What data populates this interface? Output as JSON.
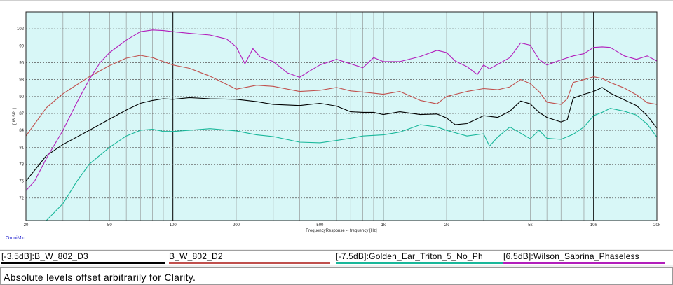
{
  "chart_data": {
    "type": "line",
    "title": "",
    "xlabel": "FrequencyResponse -- frequency [Hz]",
    "ylabel": "[dB SPL]",
    "x_scale": "log",
    "xlim": [
      20,
      20000
    ],
    "ylim": [
      68,
      105
    ],
    "grid": true,
    "background": "#d8f7f7",
    "x_ticks": [
      {
        "value": 20,
        "label": "20"
      },
      {
        "value": 50,
        "label": "50"
      },
      {
        "value": 100,
        "label": "100"
      },
      {
        "value": 200,
        "label": "200"
      },
      {
        "value": 500,
        "label": "500"
      },
      {
        "value": 1000,
        "label": "1k"
      },
      {
        "value": 2000,
        "label": "2k"
      },
      {
        "value": 5000,
        "label": "5k"
      },
      {
        "value": 10000,
        "label": "10k"
      },
      {
        "value": 20000,
        "label": "20k"
      }
    ],
    "y_ticks": [
      72,
      75,
      78,
      81,
      84,
      87,
      90,
      93,
      96,
      99,
      102
    ],
    "series": [
      {
        "name": "[-3.5dB]:B_W_802_D3",
        "color": "#000000",
        "points": [
          [
            20,
            75
          ],
          [
            25,
            79.5
          ],
          [
            30,
            81.5
          ],
          [
            40,
            84
          ],
          [
            50,
            86
          ],
          [
            60,
            87.6
          ],
          [
            70,
            88.8
          ],
          [
            80,
            89.3
          ],
          [
            90,
            89.6
          ],
          [
            100,
            89.5
          ],
          [
            120,
            89.8
          ],
          [
            150,
            89.6
          ],
          [
            200,
            89.5
          ],
          [
            250,
            89.1
          ],
          [
            300,
            88.6
          ],
          [
            400,
            88.4
          ],
          [
            500,
            88.8
          ],
          [
            600,
            88.3
          ],
          [
            700,
            87.3
          ],
          [
            800,
            87.2
          ],
          [
            900,
            87.2
          ],
          [
            1000,
            86.8
          ],
          [
            1200,
            87.3
          ],
          [
            1500,
            86.8
          ],
          [
            1800,
            86.9
          ],
          [
            2000,
            86.2
          ],
          [
            2200,
            85.0
          ],
          [
            2500,
            85.2
          ],
          [
            3000,
            86.6
          ],
          [
            3500,
            86.3
          ],
          [
            4000,
            87.4
          ],
          [
            4500,
            89.2
          ],
          [
            5000,
            88.7
          ],
          [
            5500,
            87.2
          ],
          [
            6000,
            86.3
          ],
          [
            7000,
            85.5
          ],
          [
            7500,
            85.9
          ],
          [
            8000,
            89.7
          ],
          [
            9000,
            90.4
          ],
          [
            10000,
            90.9
          ],
          [
            11000,
            91.6
          ],
          [
            12000,
            90.6
          ],
          [
            14000,
            89.4
          ],
          [
            16000,
            88.4
          ],
          [
            18000,
            86.6
          ],
          [
            20000,
            84.4
          ]
        ]
      },
      {
        "name": "B_W_802_D2",
        "color": "#c0504d",
        "points": [
          [
            20,
            83
          ],
          [
            25,
            88
          ],
          [
            30,
            90.5
          ],
          [
            40,
            93.5
          ],
          [
            50,
            95.5
          ],
          [
            60,
            96.8
          ],
          [
            70,
            97.3
          ],
          [
            80,
            96.9
          ],
          [
            90,
            96.2
          ],
          [
            100,
            95.6
          ],
          [
            120,
            95.0
          ],
          [
            150,
            93.6
          ],
          [
            200,
            91.3
          ],
          [
            250,
            92.0
          ],
          [
            300,
            91.8
          ],
          [
            400,
            90.9
          ],
          [
            500,
            91.1
          ],
          [
            600,
            91.6
          ],
          [
            700,
            91.0
          ],
          [
            800,
            90.8
          ],
          [
            1000,
            90.4
          ],
          [
            1200,
            90.9
          ],
          [
            1500,
            89.3
          ],
          [
            1800,
            88.7
          ],
          [
            2000,
            90.0
          ],
          [
            2500,
            90.9
          ],
          [
            3000,
            91.4
          ],
          [
            3500,
            91.2
          ],
          [
            4000,
            91.7
          ],
          [
            4500,
            93.0
          ],
          [
            5000,
            92.3
          ],
          [
            5500,
            90.9
          ],
          [
            6000,
            89.0
          ],
          [
            7000,
            88.6
          ],
          [
            7500,
            89.6
          ],
          [
            8000,
            92.5
          ],
          [
            9000,
            93.0
          ],
          [
            10000,
            93.5
          ],
          [
            11000,
            93.2
          ],
          [
            12000,
            92.5
          ],
          [
            14000,
            91.5
          ],
          [
            16000,
            90.3
          ],
          [
            18000,
            88.9
          ],
          [
            20000,
            88.6
          ]
        ]
      },
      {
        "name": "[-7.5dB]:Golden_Ear_Triton_5_No_Ph",
        "color": "#19b79a",
        "points": [
          [
            25,
            68
          ],
          [
            30,
            71
          ],
          [
            35,
            75
          ],
          [
            40,
            78
          ],
          [
            50,
            81
          ],
          [
            60,
            83
          ],
          [
            70,
            84
          ],
          [
            80,
            84.2
          ],
          [
            90,
            83.8
          ],
          [
            100,
            83.8
          ],
          [
            120,
            84.0
          ],
          [
            150,
            84.3
          ],
          [
            200,
            83.9
          ],
          [
            250,
            83.2
          ],
          [
            300,
            82.9
          ],
          [
            400,
            81.9
          ],
          [
            500,
            81.8
          ],
          [
            600,
            82.2
          ],
          [
            700,
            82.6
          ],
          [
            800,
            83.0
          ],
          [
            1000,
            83.2
          ],
          [
            1200,
            83.7
          ],
          [
            1500,
            85.0
          ],
          [
            1800,
            84.6
          ],
          [
            2000,
            84.0
          ],
          [
            2500,
            83.0
          ],
          [
            3000,
            83.4
          ],
          [
            3200,
            81.2
          ],
          [
            3500,
            82.8
          ],
          [
            4000,
            84.6
          ],
          [
            4500,
            83.5
          ],
          [
            5000,
            82.5
          ],
          [
            5500,
            84.0
          ],
          [
            6000,
            82.6
          ],
          [
            7000,
            82.4
          ],
          [
            8000,
            83.3
          ],
          [
            9000,
            84.6
          ],
          [
            10000,
            86.6
          ],
          [
            11000,
            87.2
          ],
          [
            12000,
            87.9
          ],
          [
            14000,
            87.4
          ],
          [
            16000,
            86.7
          ],
          [
            18000,
            85.1
          ],
          [
            20000,
            82.8
          ]
        ]
      },
      {
        "name": "[6.5dB]:Wilson_Sabrina_Phaseless",
        "color": "#b21ebb",
        "points": [
          [
            20,
            73.3
          ],
          [
            22,
            75
          ],
          [
            25,
            79
          ],
          [
            30,
            84
          ],
          [
            35,
            89
          ],
          [
            40,
            93
          ],
          [
            45,
            96
          ],
          [
            50,
            97.8
          ],
          [
            60,
            100
          ],
          [
            70,
            101.5
          ],
          [
            80,
            101.8
          ],
          [
            90,
            101.7
          ],
          [
            100,
            101.5
          ],
          [
            120,
            101.2
          ],
          [
            150,
            100.9
          ],
          [
            180,
            100.2
          ],
          [
            200,
            98.8
          ],
          [
            220,
            95.8
          ],
          [
            240,
            98.5
          ],
          [
            260,
            97.0
          ],
          [
            300,
            96.2
          ],
          [
            350,
            94.2
          ],
          [
            400,
            93.4
          ],
          [
            450,
            94.6
          ],
          [
            500,
            95.6
          ],
          [
            600,
            96.6
          ],
          [
            700,
            95.8
          ],
          [
            800,
            95.1
          ],
          [
            900,
            96.9
          ],
          [
            1000,
            96.2
          ],
          [
            1200,
            96.2
          ],
          [
            1500,
            97.1
          ],
          [
            1800,
            98.2
          ],
          [
            2000,
            97.8
          ],
          [
            2200,
            96.3
          ],
          [
            2500,
            95.3
          ],
          [
            2800,
            93.9
          ],
          [
            3000,
            95.6
          ],
          [
            3200,
            94.9
          ],
          [
            3500,
            95.7
          ],
          [
            4000,
            96.9
          ],
          [
            4500,
            99.5
          ],
          [
            5000,
            99.1
          ],
          [
            5500,
            96.6
          ],
          [
            6000,
            95.6
          ],
          [
            7000,
            96.5
          ],
          [
            8000,
            97.2
          ],
          [
            9000,
            97.6
          ],
          [
            10000,
            98.7
          ],
          [
            11000,
            98.8
          ],
          [
            12000,
            98.7
          ],
          [
            14000,
            97.2
          ],
          [
            16000,
            96.6
          ],
          [
            18000,
            97.2
          ],
          [
            20000,
            96.3
          ]
        ]
      }
    ]
  },
  "brand": "OmniMic",
  "legend": [
    {
      "label": "[-3.5dB]:B_W_802_D3",
      "color": "#000000"
    },
    {
      "label": "B_W_802_D2",
      "color": "#c0504d"
    },
    {
      "label": "[-7.5dB]:Golden_Ear_Triton_5_No_Ph",
      "color": "#19b79a"
    },
    {
      "label": "[6.5dB]:Wilson_Sabrina_Phaseless",
      "color": "#b21ebb"
    }
  ],
  "footer": {
    "note": "Absolute levels offset arbitrarily for Clarity."
  }
}
